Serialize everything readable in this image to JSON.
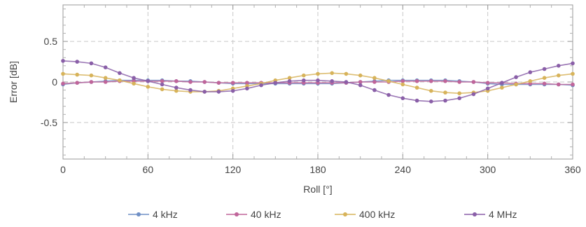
{
  "chart_data": {
    "type": "line",
    "xlabel": "Roll [°]",
    "ylabel": "Error [dB]",
    "xlim": [
      0,
      360
    ],
    "ylim": [
      -0.95,
      0.95
    ],
    "xticks": [
      "0",
      "60",
      "120",
      "180",
      "240",
      "300",
      "360"
    ],
    "yticks": [
      "0.5",
      "0",
      "-0.5"
    ],
    "grid": true,
    "legend_position": "bottom",
    "x": [
      0,
      10,
      20,
      30,
      40,
      50,
      60,
      70,
      80,
      90,
      100,
      110,
      120,
      130,
      140,
      150,
      160,
      170,
      180,
      190,
      200,
      210,
      220,
      230,
      240,
      250,
      260,
      270,
      280,
      290,
      300,
      310,
      320,
      330,
      340,
      350,
      360
    ],
    "series": [
      {
        "name": "4 kHz",
        "color": "#6f8fc5",
        "values": [
          -0.03,
          -0.01,
          0.0,
          0.01,
          0.02,
          0.02,
          0.02,
          0.02,
          0.01,
          0.01,
          0.0,
          -0.01,
          -0.02,
          -0.02,
          -0.02,
          -0.02,
          -0.02,
          -0.02,
          -0.02,
          -0.02,
          -0.01,
          0.0,
          0.01,
          0.02,
          0.02,
          0.02,
          0.02,
          0.02,
          0.01,
          0.0,
          -0.02,
          -0.03,
          -0.03,
          -0.03,
          -0.03,
          -0.03,
          -0.04
        ]
      },
      {
        "name": "40 kHz",
        "color": "#c0659a",
        "values": [
          -0.02,
          -0.01,
          0.0,
          0.0,
          0.01,
          0.01,
          0.01,
          0.01,
          0.01,
          0.0,
          0.0,
          -0.01,
          -0.01,
          -0.01,
          -0.01,
          -0.01,
          -0.01,
          -0.01,
          -0.01,
          -0.01,
          -0.01,
          0.0,
          0.0,
          0.0,
          0.01,
          0.01,
          0.01,
          0.01,
          0.0,
          0.0,
          -0.01,
          -0.01,
          -0.02,
          -0.02,
          -0.02,
          -0.03,
          -0.03
        ]
      },
      {
        "name": "400 kHz",
        "color": "#d7b35a",
        "values": [
          0.1,
          0.09,
          0.08,
          0.05,
          0.02,
          -0.02,
          -0.06,
          -0.09,
          -0.11,
          -0.12,
          -0.12,
          -0.11,
          -0.08,
          -0.05,
          -0.02,
          0.02,
          0.05,
          0.08,
          0.1,
          0.11,
          0.1,
          0.08,
          0.05,
          0.01,
          -0.03,
          -0.07,
          -0.11,
          -0.13,
          -0.14,
          -0.13,
          -0.11,
          -0.07,
          -0.03,
          0.01,
          0.05,
          0.08,
          0.1
        ]
      },
      {
        "name": "4 MHz",
        "color": "#8a5fa8",
        "values": [
          0.26,
          0.25,
          0.23,
          0.18,
          0.11,
          0.05,
          0.01,
          -0.03,
          -0.07,
          -0.1,
          -0.12,
          -0.12,
          -0.11,
          -0.08,
          -0.04,
          -0.01,
          0.01,
          0.02,
          0.02,
          0.01,
          0.0,
          -0.04,
          -0.1,
          -0.16,
          -0.2,
          -0.23,
          -0.24,
          -0.23,
          -0.2,
          -0.15,
          -0.08,
          -0.01,
          0.06,
          0.12,
          0.16,
          0.2,
          0.23
        ]
      }
    ]
  }
}
